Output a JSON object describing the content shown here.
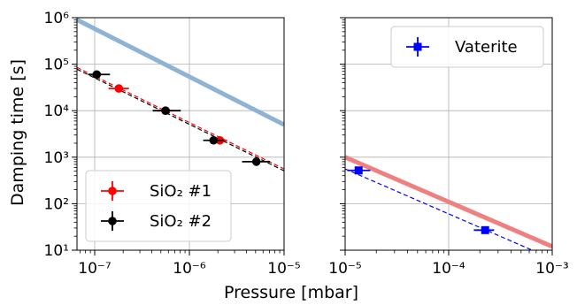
{
  "chart_data": [
    {
      "type": "scatter",
      "panel": "left",
      "x_scale": "log",
      "y_scale": "log",
      "xlim": [
        6.5e-08,
        1e-05
      ],
      "ylim": [
        10,
        1000000
      ],
      "grid": true,
      "xlabel": "",
      "ylabel": "Damping time [s]",
      "x_tick_labels": [
        "10⁻⁷",
        "10⁻⁶",
        "10⁻⁵"
      ],
      "y_tick_labels": [
        "10¹",
        "10²",
        "10³",
        "10⁴",
        "10⁵",
        "10⁶"
      ],
      "legend_position": "lower-left",
      "series": [
        {
          "name": "SiO₂ #1",
          "color": "#ff0000",
          "marker": "circle",
          "points": [
            {
              "x": 1.8e-07,
              "y": 30000,
              "xerr": [
                4e-08,
                5e-08
              ]
            },
            {
              "x": 5.6e-07,
              "y": 10000,
              "xerr": [
                1e-07,
                1e-07
              ]
            },
            {
              "x": 2.1e-06,
              "y": 2300,
              "xerr": [
                3e-07,
                4e-07
              ]
            }
          ]
        },
        {
          "name": "SiO₂ #2",
          "color": "#000000",
          "marker": "circle",
          "points": [
            {
              "x": 1.05e-07,
              "y": 60000,
              "xerr": [
                2e-08,
                4e-08
              ]
            },
            {
              "x": 5.6e-07,
              "y": 10000,
              "xerr": [
                1.5e-07,
                2.5e-07
              ]
            },
            {
              "x": 1.8e-06,
              "y": 2300,
              "xerr": [
                4e-07,
                5e-07
              ]
            },
            {
              "x": 5.1e-06,
              "y": 800,
              "xerr": [
                1.5e-06,
                2e-06
              ]
            }
          ]
        }
      ],
      "lines": [
        {
          "color": "#8fb3d4",
          "style": "thick",
          "points": [
            [
              6.5e-08,
              900000
            ],
            [
              1e-05,
              5000
            ]
          ]
        },
        {
          "color": "#ff0000",
          "style": "dashed",
          "points": [
            [
              6.5e-08,
              85000
            ],
            [
              1e-05,
              560
            ]
          ]
        },
        {
          "color": "#000000",
          "style": "dashed",
          "points": [
            [
              6.5e-08,
              78000
            ],
            [
              1e-05,
              510
            ]
          ]
        }
      ]
    },
    {
      "type": "scatter",
      "panel": "right",
      "x_scale": "log",
      "y_scale": "log",
      "xlim": [
        1e-05,
        0.001
      ],
      "ylim": [
        10,
        1000000
      ],
      "grid": true,
      "xlabel": "",
      "ylabel": "",
      "x_tick_labels": [
        "10⁻⁵",
        "10⁻⁴",
        "10⁻³"
      ],
      "legend_position": "top-right",
      "series": [
        {
          "name": "Vaterite",
          "color": "#0000ff",
          "marker": "square",
          "points": [
            {
              "x": 1.35e-05,
              "y": 520,
              "xerr": [
                3e-06,
                4e-06
              ]
            },
            {
              "x": 0.000225,
              "y": 27,
              "xerr": [
                5e-05,
                5e-05
              ]
            }
          ]
        }
      ],
      "lines": [
        {
          "color": "#f08080",
          "style": "thick",
          "points": [
            [
              1e-05,
              1000
            ],
            [
              0.001,
              12
            ]
          ]
        },
        {
          "color": "#0000ff",
          "style": "dashed",
          "points": [
            [
              1e-05,
              560
            ],
            [
              0.001,
              6.5
            ]
          ]
        }
      ]
    }
  ],
  "shared": {
    "xlabel": "Pressure [mbar]"
  }
}
